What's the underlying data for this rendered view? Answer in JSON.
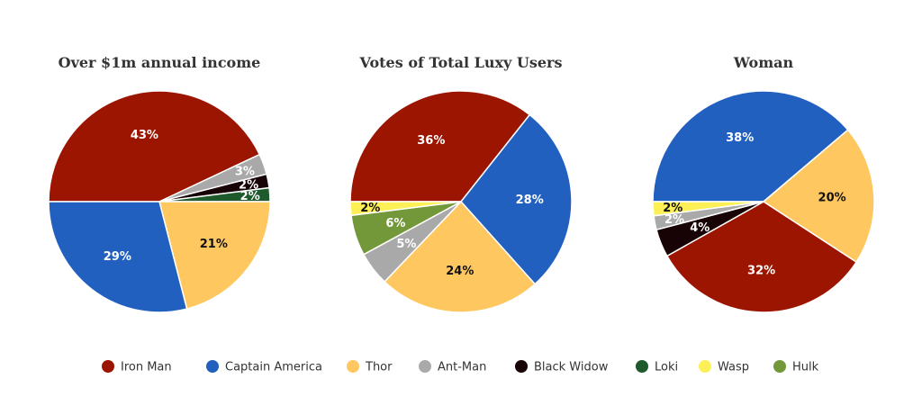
{
  "chart_data": [
    {
      "type": "pie",
      "title": "Over $1m annual income",
      "slices": [
        {
          "name": "Iron Man",
          "value": 43,
          "label": "43%",
          "color": "#9c1500"
        },
        {
          "name": "Ant-Man",
          "value": 3,
          "label": "3%",
          "color": "#a9a9a9"
        },
        {
          "name": "Black Widow",
          "value": 2,
          "label": "2%",
          "color": "#170306"
        },
        {
          "name": "Loki",
          "value": 2,
          "label": "2%",
          "color": "#1f5a2c"
        },
        {
          "name": "Thor",
          "value": 21,
          "label": "21%",
          "color": "#fec760"
        },
        {
          "name": "Captain America",
          "value": 29,
          "label": "29%",
          "color": "#2260c0"
        }
      ]
    },
    {
      "type": "pie",
      "title": "Votes of Total Luxy Users",
      "slices": [
        {
          "name": "Iron Man",
          "value": 36,
          "label": "36%",
          "color": "#9c1500"
        },
        {
          "name": "Captain America",
          "value": 28,
          "label": "28%",
          "color": "#2260c0"
        },
        {
          "name": "Thor",
          "value": 24,
          "label": "24%",
          "color": "#fec760"
        },
        {
          "name": "Ant-Man",
          "value": 5,
          "label": "5%",
          "color": "#a9a9a9"
        },
        {
          "name": "Hulk",
          "value": 6,
          "label": "6%",
          "color": "#73983a"
        },
        {
          "name": "Wasp",
          "value": 2,
          "label": "2%",
          "color": "#fdf057"
        }
      ]
    },
    {
      "type": "pie",
      "title": "Woman",
      "slices": [
        {
          "name": "Captain America",
          "value": 38,
          "label": "38%",
          "color": "#2260c0"
        },
        {
          "name": "Thor",
          "value": 20,
          "label": "20%",
          "color": "#fec760"
        },
        {
          "name": "Iron Man",
          "value": 32,
          "label": "32%",
          "color": "#9c1500"
        },
        {
          "name": "Black Widow",
          "value": 4,
          "label": "4%",
          "color": "#170306"
        },
        {
          "name": "Ant-Man",
          "value": 2,
          "label": "2%",
          "color": "#a9a9a9"
        },
        {
          "name": "Wasp",
          "value": 2,
          "label": "2%",
          "color": "#fdf057"
        }
      ]
    }
  ],
  "legend": [
    {
      "label": "Iron Man",
      "color": "#9c1500"
    },
    {
      "label": "Captain America",
      "color": "#2260c0"
    },
    {
      "label": "Thor",
      "color": "#fec760"
    },
    {
      "label": "Ant-Man",
      "color": "#a9a9a9"
    },
    {
      "label": "Black Widow",
      "color": "#170306"
    },
    {
      "label": "Loki",
      "color": "#1f5a2c"
    },
    {
      "label": "Wasp",
      "color": "#fdf057"
    },
    {
      "label": "Hulk",
      "color": "#73983a"
    }
  ],
  "legend_placement": "bottom"
}
